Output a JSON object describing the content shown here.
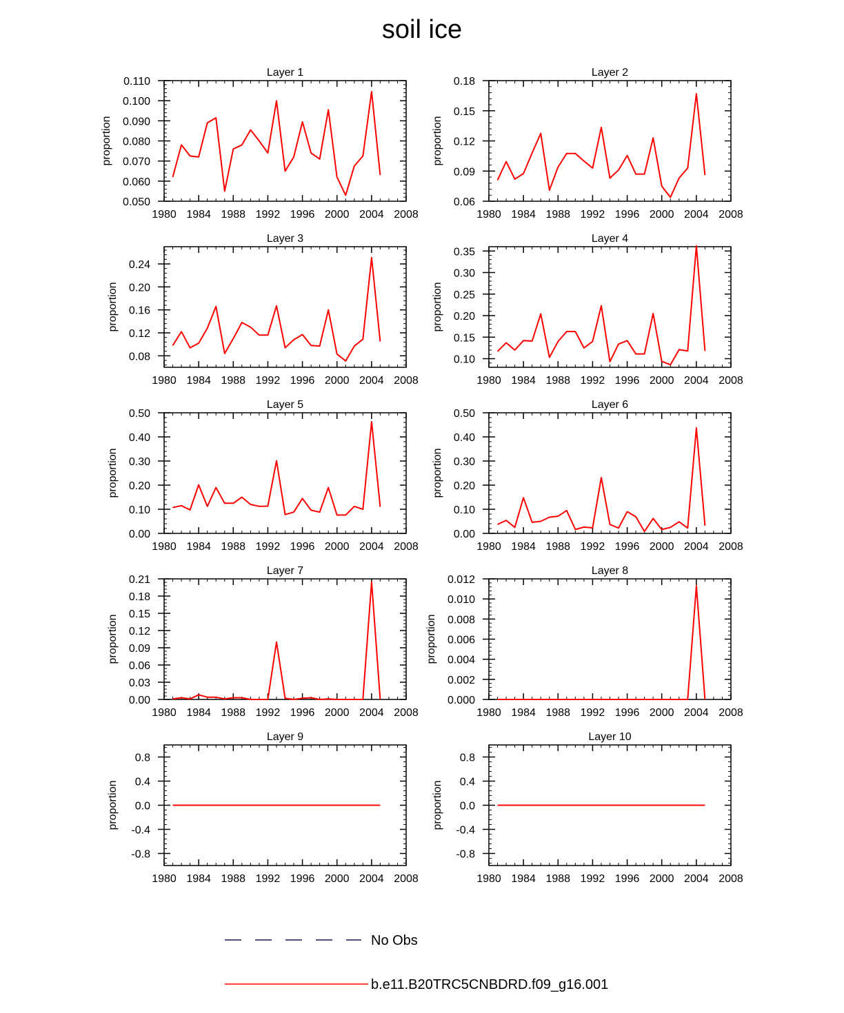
{
  "title": "soil ice",
  "legend": {
    "entries": [
      {
        "label": "No Obs",
        "color": "#1a1a5e",
        "dash": true
      },
      {
        "label": "b.e11.B20TRC5CNBDRD.f09_g16.001",
        "color": "#ff0000",
        "dash": false
      }
    ]
  },
  "series_color": "#ff0000",
  "chart_data": [
    {
      "type": "line",
      "title": "Layer 1",
      "ylabel": "proportion",
      "xlim": [
        1980,
        2008
      ],
      "xticks": [
        1980,
        1984,
        1988,
        1992,
        1996,
        2000,
        2004,
        2008
      ],
      "ylim": [
        0.05,
        0.11
      ],
      "yticks": [
        "0.050",
        "0.060",
        "0.070",
        "0.080",
        "0.090",
        "0.100",
        "0.110"
      ],
      "x": [
        1981,
        1982,
        1983,
        1984,
        1985,
        1986,
        1987,
        1988,
        1989,
        1990,
        1991,
        1992,
        1993,
        1994,
        1995,
        1996,
        1997,
        1998,
        1999,
        2000,
        2001,
        2002,
        2003,
        2004,
        2005
      ],
      "values": [
        0.062,
        0.078,
        0.0725,
        0.072,
        0.089,
        0.0915,
        0.055,
        0.076,
        0.078,
        0.0855,
        0.08,
        0.074,
        0.1,
        0.065,
        0.072,
        0.0895,
        0.074,
        0.071,
        0.0955,
        0.062,
        0.053,
        0.0675,
        0.0725,
        0.1045,
        0.063
      ]
    },
    {
      "type": "line",
      "title": "Layer 2",
      "ylabel": "proportion",
      "xlim": [
        1980,
        2008
      ],
      "xticks": [
        1980,
        1984,
        1988,
        1992,
        1996,
        2000,
        2004,
        2008
      ],
      "ylim": [
        0.06,
        0.18
      ],
      "yticks": [
        "0.06",
        "0.09",
        "0.12",
        "0.15",
        "0.18"
      ],
      "x": [
        1981,
        1982,
        1983,
        1984,
        1985,
        1986,
        1987,
        1988,
        1989,
        1990,
        1991,
        1992,
        1993,
        1994,
        1995,
        1996,
        1997,
        1998,
        1999,
        2000,
        2001,
        2002,
        2003,
        2004,
        2005
      ],
      "values": [
        0.081,
        0.0995,
        0.082,
        0.0875,
        0.108,
        0.1275,
        0.071,
        0.094,
        0.1075,
        0.1075,
        0.1,
        0.093,
        0.1335,
        0.083,
        0.091,
        0.1055,
        0.087,
        0.087,
        0.123,
        0.075,
        0.064,
        0.083,
        0.093,
        0.167,
        0.086
      ]
    },
    {
      "type": "line",
      "title": "Layer 3",
      "ylabel": "proportion",
      "xlim": [
        1980,
        2008
      ],
      "xticks": [
        1980,
        1984,
        1988,
        1992,
        1996,
        2000,
        2004,
        2008
      ],
      "ylim": [
        0.06,
        0.27
      ],
      "yticks": [
        "0.08",
        "0.12",
        "0.16",
        "0.20",
        "0.24"
      ],
      "x": [
        1981,
        1982,
        1983,
        1984,
        1985,
        1986,
        1987,
        1988,
        1989,
        1990,
        1991,
        1992,
        1993,
        1994,
        1995,
        1996,
        1997,
        1998,
        1999,
        2000,
        2001,
        2002,
        2003,
        2004,
        2005
      ],
      "values": [
        0.098,
        0.122,
        0.094,
        0.102,
        0.128,
        0.166,
        0.084,
        0.11,
        0.138,
        0.13,
        0.116,
        0.116,
        0.167,
        0.094,
        0.108,
        0.117,
        0.098,
        0.097,
        0.16,
        0.083,
        0.071,
        0.097,
        0.109,
        0.251,
        0.105
      ]
    },
    {
      "type": "line",
      "title": "Layer 4",
      "ylabel": "proportion",
      "xlim": [
        1980,
        2008
      ],
      "xticks": [
        1980,
        1984,
        1988,
        1992,
        1996,
        2000,
        2004,
        2008
      ],
      "ylim": [
        0.08,
        0.36
      ],
      "yticks": [
        "0.10",
        "0.15",
        "0.20",
        "0.25",
        "0.30",
        "0.35"
      ],
      "x": [
        1981,
        1982,
        1983,
        1984,
        1985,
        1986,
        1987,
        1988,
        1989,
        1990,
        1991,
        1992,
        1993,
        1994,
        1995,
        1996,
        1997,
        1998,
        1999,
        2000,
        2001,
        2002,
        2003,
        2004,
        2005
      ],
      "values": [
        0.117,
        0.137,
        0.12,
        0.142,
        0.141,
        0.204,
        0.103,
        0.14,
        0.163,
        0.163,
        0.125,
        0.14,
        0.223,
        0.093,
        0.134,
        0.142,
        0.111,
        0.111,
        0.205,
        0.094,
        0.086,
        0.121,
        0.118,
        0.362,
        0.118
      ]
    },
    {
      "type": "line",
      "title": "Layer 5",
      "ylabel": "proportion",
      "xlim": [
        1980,
        2008
      ],
      "xticks": [
        1980,
        1984,
        1988,
        1992,
        1996,
        2000,
        2004,
        2008
      ],
      "ylim": [
        0.0,
        0.5
      ],
      "yticks": [
        "0.00",
        "0.10",
        "0.20",
        "0.30",
        "0.40",
        "0.50"
      ],
      "x": [
        1981,
        1982,
        1983,
        1984,
        1985,
        1986,
        1987,
        1988,
        1989,
        1990,
        1991,
        1992,
        1993,
        1994,
        1995,
        1996,
        1997,
        1998,
        1999,
        2000,
        2001,
        2002,
        2003,
        2004,
        2005
      ],
      "values": [
        0.107,
        0.115,
        0.097,
        0.201,
        0.112,
        0.19,
        0.125,
        0.125,
        0.15,
        0.12,
        0.112,
        0.113,
        0.301,
        0.078,
        0.088,
        0.145,
        0.096,
        0.088,
        0.19,
        0.076,
        0.076,
        0.112,
        0.1,
        0.463,
        0.11
      ]
    },
    {
      "type": "line",
      "title": "Layer 6",
      "ylabel": "proportion",
      "xlim": [
        1980,
        2008
      ],
      "xticks": [
        1980,
        1984,
        1988,
        1992,
        1996,
        2000,
        2004,
        2008
      ],
      "ylim": [
        0.0,
        0.5
      ],
      "yticks": [
        "0.00",
        "0.10",
        "0.20",
        "0.30",
        "0.40",
        "0.50"
      ],
      "x": [
        1981,
        1982,
        1983,
        1984,
        1985,
        1986,
        1987,
        1988,
        1989,
        1990,
        1991,
        1992,
        1993,
        1994,
        1995,
        1996,
        1997,
        1998,
        1999,
        2000,
        2001,
        2002,
        2003,
        2004,
        2005
      ],
      "values": [
        0.037,
        0.054,
        0.025,
        0.148,
        0.046,
        0.05,
        0.067,
        0.071,
        0.095,
        0.016,
        0.026,
        0.023,
        0.231,
        0.037,
        0.022,
        0.09,
        0.069,
        0.008,
        0.062,
        0.016,
        0.025,
        0.048,
        0.022,
        0.437,
        0.032
      ]
    },
    {
      "type": "line",
      "title": "Layer 7",
      "ylabel": "proportion",
      "xlim": [
        1980,
        2008
      ],
      "xticks": [
        1980,
        1984,
        1988,
        1992,
        1996,
        2000,
        2004,
        2008
      ],
      "ylim": [
        0.0,
        0.21
      ],
      "yticks": [
        "0.00",
        "0.03",
        "0.06",
        "0.09",
        "0.12",
        "0.15",
        "0.18",
        "0.21"
      ],
      "x": [
        1981,
        1982,
        1983,
        1984,
        1985,
        1986,
        1987,
        1988,
        1989,
        1990,
        1991,
        1992,
        1993,
        1994,
        1995,
        1996,
        1997,
        1998,
        1999,
        2000,
        2001,
        2002,
        2003,
        2004,
        2005
      ],
      "values": [
        0.001,
        0.003,
        0.001,
        0.008,
        0.004,
        0.004,
        0.001,
        0.003,
        0.003,
        0.0,
        0.0,
        0.0,
        0.1,
        0.002,
        0.0,
        0.002,
        0.003,
        0.0,
        0.001,
        0.0,
        0.0,
        0.0,
        0.0,
        0.205,
        0.0
      ]
    },
    {
      "type": "line",
      "title": "Layer 8",
      "ylabel": "proportion",
      "xlim": [
        1980,
        2008
      ],
      "xticks": [
        1980,
        1984,
        1988,
        1992,
        1996,
        2000,
        2004,
        2008
      ],
      "ylim": [
        0.0,
        0.012
      ],
      "yticks": [
        "0.000",
        "0.002",
        "0.004",
        "0.006",
        "0.008",
        "0.010",
        "0.012"
      ],
      "x": [
        1981,
        1982,
        1983,
        1984,
        1985,
        1986,
        1987,
        1988,
        1989,
        1990,
        1991,
        1992,
        1993,
        1994,
        1995,
        1996,
        1997,
        1998,
        1999,
        2000,
        2001,
        2002,
        2003,
        2004,
        2005
      ],
      "values": [
        0,
        0,
        0,
        0,
        0,
        0,
        0,
        0,
        0,
        0,
        0,
        0,
        0,
        0,
        0,
        0,
        0,
        0,
        0,
        0,
        0,
        0,
        0,
        0.0113,
        0
      ]
    },
    {
      "type": "line",
      "title": "Layer 9",
      "ylabel": "proportion",
      "xlim": [
        1980,
        2008
      ],
      "xticks": [
        1980,
        1984,
        1988,
        1992,
        1996,
        2000,
        2004,
        2008
      ],
      "ylim": [
        -1.0,
        1.0
      ],
      "yticks": [
        "-0.8",
        "-0.4",
        "0.0",
        "0.4",
        "0.8"
      ],
      "x": [
        1981,
        2005
      ],
      "values": [
        0.0,
        0.0
      ]
    },
    {
      "type": "line",
      "title": "Layer 10",
      "ylabel": "proportion",
      "xlim": [
        1980,
        2008
      ],
      "xticks": [
        1980,
        1984,
        1988,
        1992,
        1996,
        2000,
        2004,
        2008
      ],
      "ylim": [
        -1.0,
        1.0
      ],
      "yticks": [
        "-0.8",
        "-0.4",
        "0.0",
        "0.4",
        "0.8"
      ],
      "x": [
        1981,
        2005
      ],
      "values": [
        0.0,
        0.0
      ]
    }
  ]
}
